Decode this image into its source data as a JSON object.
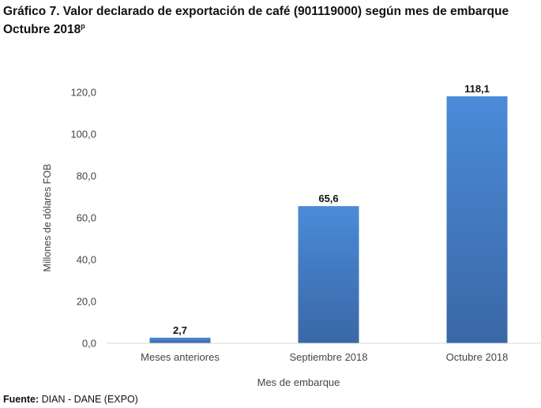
{
  "title_line1": "Gráfico 7. Valor declarado de exportación de café (901119000) según mes de embarque",
  "title_line2": "Octubre 2018",
  "title_superscript": "p",
  "source_label": "Fuente:",
  "source_text": " DIAN - DANE (EXPO)",
  "chart_data": {
    "type": "bar",
    "title": "Gráfico 7. Valor declarado de exportación de café (901119000) según mes de embarque Octubre 2018p",
    "categories": [
      "Meses anteriores",
      "Septiembre 2018",
      "Octubre 2018"
    ],
    "values": [
      2.7,
      65.6,
      118.1
    ],
    "data_labels": [
      "2,7",
      "65,6",
      "118,1"
    ],
    "xlabel": "Mes de embarque",
    "ylabel": "Millones de dólares FOB",
    "ylim": [
      0,
      120
    ],
    "yticks": [
      0,
      20,
      40,
      60,
      80,
      100,
      120
    ],
    "ytick_labels": [
      "0,0",
      "20,0",
      "40,0",
      "60,0",
      "80,0",
      "100,0",
      "120,0"
    ],
    "grid": false,
    "bar_color": "#4A86D0"
  }
}
